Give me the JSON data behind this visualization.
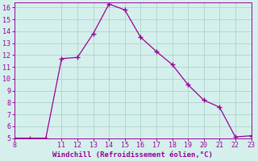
{
  "x": [
    8,
    9,
    10,
    11,
    12,
    13,
    14,
    15,
    16,
    17,
    18,
    19,
    20,
    21,
    22,
    23
  ],
  "y": [
    5.0,
    5.0,
    5.0,
    11.7,
    11.8,
    13.8,
    16.3,
    15.8,
    13.5,
    12.3,
    11.2,
    9.5,
    8.2,
    7.6,
    5.1,
    5.2
  ],
  "line_color": "#990099",
  "marker": "+",
  "bg_color": "#d5f0ec",
  "grid_color": "#b0d8d0",
  "xlabel": "Windchill (Refroidissement éolien,°C)",
  "xlabel_color": "#990099",
  "tick_color": "#990099",
  "spine_color": "#990099",
  "xlim": [
    8,
    23
  ],
  "ylim": [
    5,
    16
  ],
  "xticks": [
    8,
    11,
    12,
    13,
    14,
    15,
    16,
    17,
    18,
    19,
    20,
    21,
    22,
    23
  ],
  "yticks": [
    5,
    6,
    7,
    8,
    9,
    10,
    11,
    12,
    13,
    14,
    15,
    16
  ]
}
